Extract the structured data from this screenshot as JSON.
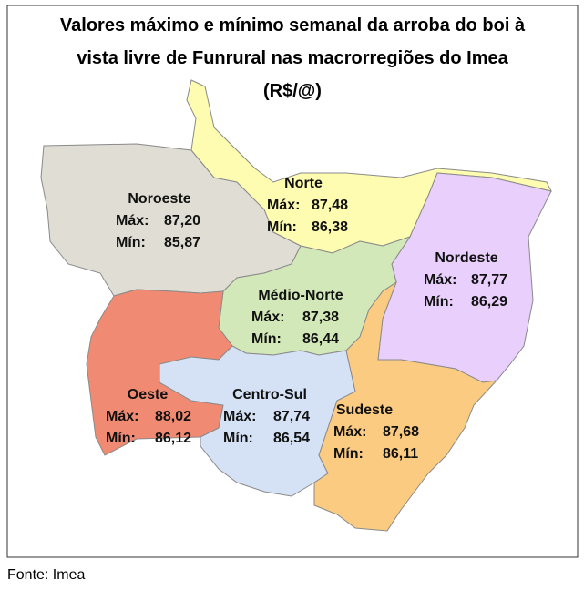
{
  "title": [
    "Valores máximo e mínimo semanal da arroba do boi à",
    "vista livre de Funrural nas macrorregiões do Imea",
    "(R$/@)"
  ],
  "labels": {
    "max": "Máx:",
    "min": "Mín:"
  },
  "regions": [
    {
      "name": "Noroeste",
      "max": "87,20",
      "min": "85,87"
    },
    {
      "name": "Norte",
      "max": "87,48",
      "min": "86,38"
    },
    {
      "name": "Nordeste",
      "max": "87,77",
      "min": "86,29"
    },
    {
      "name": "Médio-Norte",
      "max": "87,38",
      "min": "86,44"
    },
    {
      "name": "Oeste",
      "max": "88,02",
      "min": "86,12"
    },
    {
      "name": "Centro-Sul",
      "max": "87,74",
      "min": "86,54"
    },
    {
      "name": "Sudeste",
      "max": "87,68",
      "min": "86,11"
    }
  ],
  "source": "Fonte: Imea"
}
